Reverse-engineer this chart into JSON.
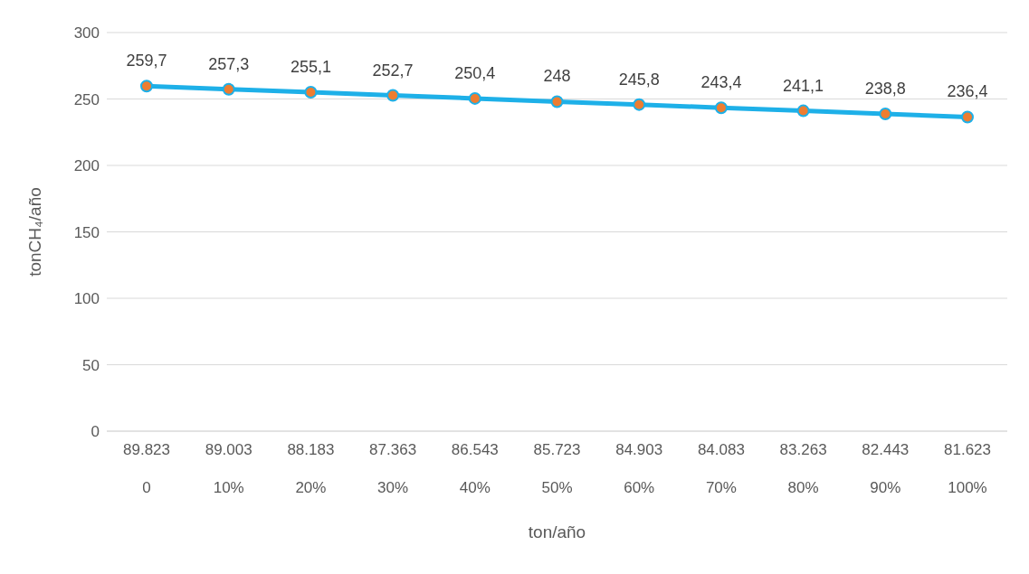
{
  "chart_data": {
    "type": "line",
    "xlabel": "ton/año",
    "ylabel": "tonCH₄/año",
    "categories": [
      "89.823\n0",
      "89.003\n10%",
      "88.183\n20%",
      "87.363\n30%",
      "86.543\n40%",
      "85.723\n50%",
      "84.903\n60%",
      "84.083\n70%",
      "83.263\n80%",
      "82.443\n90%",
      "81.623\n100%"
    ],
    "series": [
      {
        "color": "#1eb0e8",
        "values": [
          259.7,
          257.3,
          255.1,
          252.7,
          250.4,
          248,
          245.8,
          243.4,
          241.1,
          238.8,
          236.4
        ],
        "colors": [
          "#ed7d31",
          "#ed7d31",
          "#ed7d31",
          "#ed7d31",
          "#ed7d31",
          "#ed7d31",
          "#ed7d31",
          "#ed7d31",
          "#ed7d31",
          "#ed7d31",
          "#ed7d31"
        ],
        "value_labels": [
          "259,7",
          "257,3",
          "255,1",
          "252,7",
          "250,4",
          "248",
          "245,8",
          "243,4",
          "241,1",
          "238,8",
          "236,4"
        ]
      }
    ],
    "marker": "circle",
    "ylim": [
      0,
      300
    ],
    "yticks": [
      0,
      50,
      100,
      150,
      200,
      250,
      300
    ],
    "grid": "y"
  }
}
